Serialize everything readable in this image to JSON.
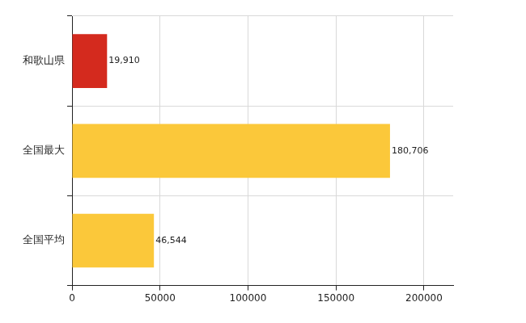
{
  "chart_data": {
    "type": "bar",
    "orientation": "horizontal",
    "categories": [
      "和歌山県",
      "全国最大",
      "全国平均"
    ],
    "values": [
      19910,
      180706,
      46544
    ],
    "value_labels": [
      "19,910",
      "180,706",
      "46,544"
    ],
    "colors": [
      "#d42a1e",
      "#fbc83a",
      "#fbc83a"
    ],
    "xlim": [
      0,
      216600
    ],
    "xticks": [
      0,
      50000,
      100000,
      150000,
      200000
    ],
    "grid": true,
    "data_labels": true
  }
}
